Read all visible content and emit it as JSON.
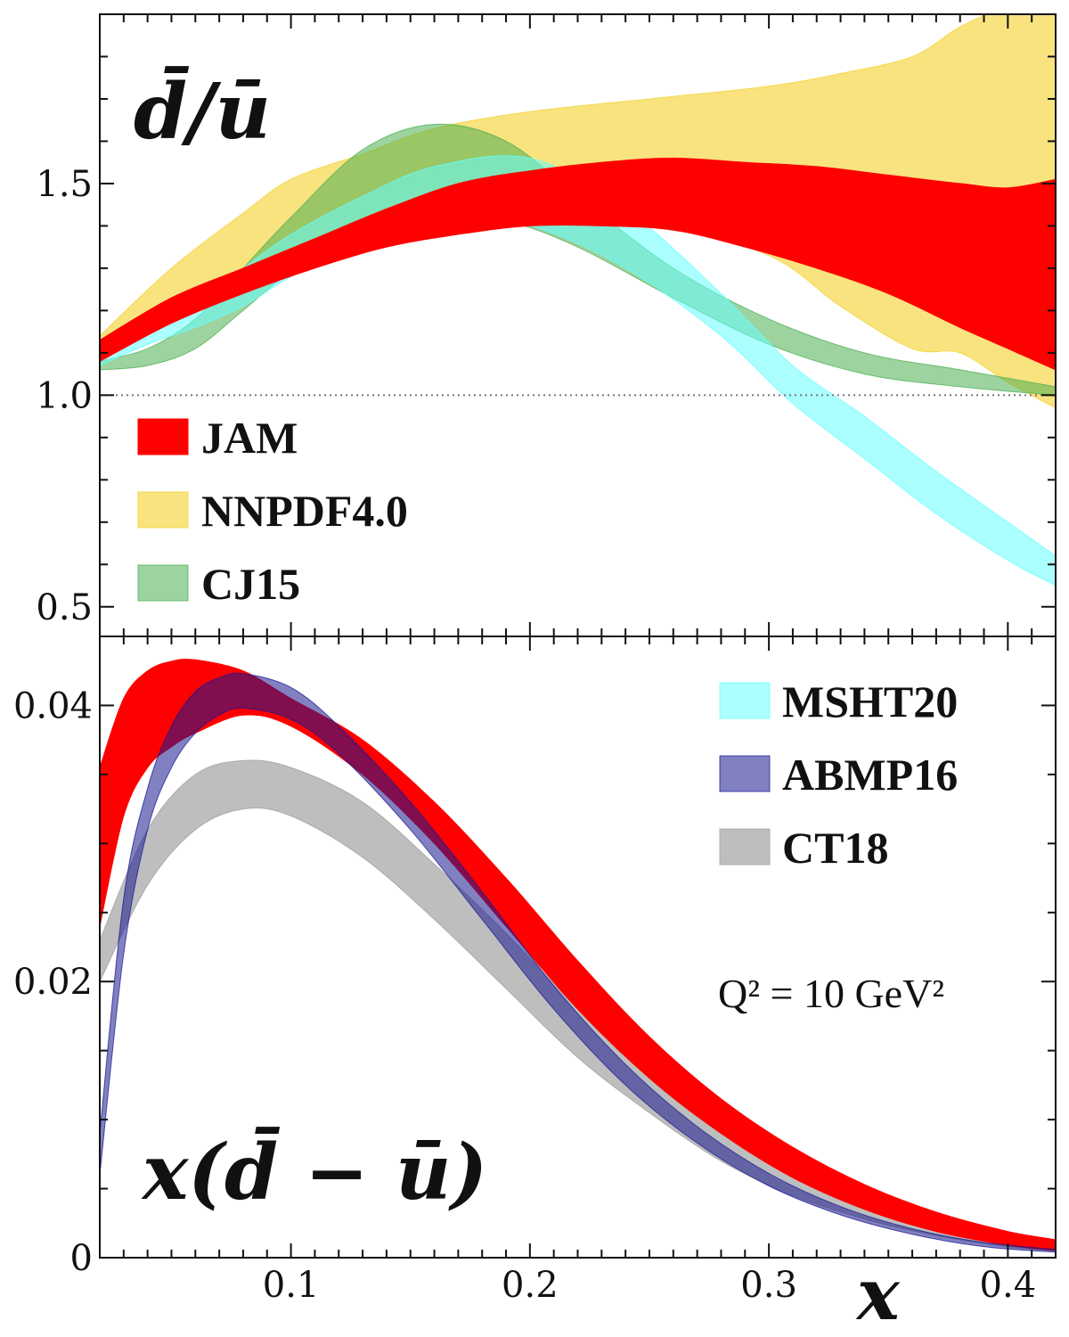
{
  "chart_data": [
    {
      "type": "area",
      "title": "d̄/ū",
      "xlabel": "",
      "ylabel": "",
      "xlim": [
        0.02,
        0.42
      ],
      "ylim": [
        0.43,
        1.9
      ],
      "yticks": [
        0.5,
        1.0,
        1.5
      ],
      "ytick_labels": [
        "0.5",
        "1.0",
        "1.5"
      ],
      "reference_line": 1.0,
      "series": [
        {
          "name": "NNPDF4.0",
          "color": "#f6d43a",
          "opacity": 0.65,
          "x": [
            0.02,
            0.05,
            0.08,
            0.1,
            0.13,
            0.16,
            0.2,
            0.25,
            0.3,
            0.33,
            0.36,
            0.38,
            0.4,
            0.42
          ],
          "lower": [
            1.1,
            1.19,
            1.26,
            1.3,
            1.36,
            1.4,
            1.42,
            1.41,
            1.33,
            1.21,
            1.11,
            1.1,
            1.03,
            0.97
          ],
          "upper": [
            1.14,
            1.3,
            1.43,
            1.51,
            1.57,
            1.63,
            1.67,
            1.7,
            1.73,
            1.76,
            1.8,
            1.87,
            1.92,
            1.95
          ]
        },
        {
          "name": "CJ15",
          "color": "#4caf50",
          "opacity": 0.55,
          "x": [
            0.02,
            0.04,
            0.06,
            0.08,
            0.1,
            0.13,
            0.16,
            0.19,
            0.22,
            0.26,
            0.3,
            0.34,
            0.38,
            0.42
          ],
          "lower": [
            1.06,
            1.07,
            1.11,
            1.2,
            1.29,
            1.37,
            1.41,
            1.41,
            1.35,
            1.23,
            1.12,
            1.05,
            1.02,
            1.0
          ],
          "upper": [
            1.08,
            1.11,
            1.18,
            1.3,
            1.42,
            1.58,
            1.64,
            1.6,
            1.47,
            1.3,
            1.18,
            1.1,
            1.06,
            1.02
          ]
        },
        {
          "name": "MSHT20",
          "color": "#66ffff",
          "opacity": 0.55,
          "x": [
            0.02,
            0.04,
            0.06,
            0.08,
            0.1,
            0.13,
            0.16,
            0.2,
            0.24,
            0.28,
            0.31,
            0.34,
            0.37,
            0.4,
            0.42
          ],
          "lower": [
            1.07,
            1.12,
            1.16,
            1.21,
            1.28,
            1.37,
            1.42,
            1.4,
            1.3,
            1.14,
            0.98,
            0.85,
            0.72,
            0.61,
            0.55
          ],
          "upper": [
            1.1,
            1.16,
            1.22,
            1.3,
            1.38,
            1.47,
            1.54,
            1.56,
            1.44,
            1.24,
            1.07,
            0.95,
            0.82,
            0.7,
            0.62
          ]
        },
        {
          "name": "JAM",
          "color": "#ff0000",
          "opacity": 1.0,
          "x": [
            0.02,
            0.05,
            0.08,
            0.11,
            0.14,
            0.17,
            0.2,
            0.23,
            0.26,
            0.29,
            0.32,
            0.35,
            0.38,
            0.4,
            0.42
          ],
          "lower": [
            1.08,
            1.17,
            1.24,
            1.3,
            1.35,
            1.38,
            1.4,
            1.4,
            1.39,
            1.35,
            1.3,
            1.24,
            1.16,
            1.11,
            1.06
          ],
          "upper": [
            1.13,
            1.23,
            1.3,
            1.37,
            1.44,
            1.5,
            1.53,
            1.55,
            1.56,
            1.55,
            1.54,
            1.52,
            1.5,
            1.49,
            1.51
          ]
        }
      ]
    },
    {
      "type": "area",
      "title": "x(d̄ − ū)",
      "xlabel": "x",
      "ylabel": "",
      "xlim": [
        0.02,
        0.42
      ],
      "ylim": [
        0,
        0.045
      ],
      "xticks": [
        0.1,
        0.2,
        0.3,
        0.4
      ],
      "xtick_labels": [
        "0.1",
        "0.2",
        "0.3",
        "0.4"
      ],
      "yticks": [
        0,
        0.02,
        0.04
      ],
      "ytick_labels": [
        "0",
        "0.02",
        "0.04"
      ],
      "annotation": "Q² = 10 GeV²",
      "series": [
        {
          "name": "CT18",
          "color": "#a8a8a8",
          "opacity": 0.75,
          "x": [
            0.02,
            0.04,
            0.06,
            0.08,
            0.1,
            0.13,
            0.16,
            0.19,
            0.22,
            0.25,
            0.28,
            0.31,
            0.34,
            0.37,
            0.4,
            0.42
          ],
          "lower": [
            0.02,
            0.027,
            0.031,
            0.0325,
            0.032,
            0.029,
            0.0245,
            0.0195,
            0.0145,
            0.0105,
            0.007,
            0.0045,
            0.0028,
            0.0016,
            0.0008,
            0.0005
          ],
          "upper": [
            0.023,
            0.031,
            0.035,
            0.036,
            0.0355,
            0.033,
            0.0285,
            0.0235,
            0.018,
            0.013,
            0.009,
            0.006,
            0.0038,
            0.0023,
            0.0013,
            0.0008
          ]
        },
        {
          "name": "JAM",
          "color": "#ff0000",
          "opacity": 1.0,
          "x": [
            0.02,
            0.03,
            0.04,
            0.05,
            0.06,
            0.08,
            0.1,
            0.13,
            0.16,
            0.19,
            0.22,
            0.25,
            0.28,
            0.31,
            0.34,
            0.37,
            0.4,
            0.42
          ],
          "lower": [
            0.024,
            0.032,
            0.0355,
            0.037,
            0.038,
            0.0393,
            0.0385,
            0.035,
            0.03,
            0.024,
            0.018,
            0.013,
            0.009,
            0.0058,
            0.0035,
            0.0019,
            0.0009,
            0.0005
          ],
          "upper": [
            0.0355,
            0.0405,
            0.0425,
            0.0432,
            0.0433,
            0.0425,
            0.0405,
            0.0375,
            0.033,
            0.0275,
            0.0215,
            0.016,
            0.0115,
            0.008,
            0.0053,
            0.0033,
            0.0019,
            0.0013
          ]
        },
        {
          "name": "ABMP16",
          "color": "#1a1a90",
          "opacity": 0.55,
          "x": [
            0.02,
            0.03,
            0.04,
            0.05,
            0.06,
            0.07,
            0.08,
            0.1,
            0.12,
            0.15,
            0.18,
            0.21,
            0.24,
            0.27,
            0.3,
            0.33,
            0.36,
            0.39,
            0.42
          ],
          "lower": [
            0.006,
            0.022,
            0.031,
            0.0355,
            0.038,
            0.0393,
            0.0398,
            0.039,
            0.0365,
            0.031,
            0.0245,
            0.018,
            0.0125,
            0.0083,
            0.0052,
            0.0031,
            0.0017,
            0.0008,
            0.0004
          ],
          "upper": [
            0.009,
            0.026,
            0.034,
            0.0385,
            0.041,
            0.042,
            0.0423,
            0.0413,
            0.0385,
            0.033,
            0.0265,
            0.0197,
            0.014,
            0.0095,
            0.0061,
            0.0037,
            0.0021,
            0.0011,
            0.0006
          ]
        }
      ]
    }
  ],
  "legend_top": [
    {
      "name": "JAM",
      "color": "#ff0000",
      "opacity": 1.0
    },
    {
      "name": "NNPDF4.0",
      "color": "#f6d43a",
      "opacity": 0.65
    },
    {
      "name": "CJ15",
      "color": "#4caf50",
      "opacity": 0.55
    }
  ],
  "legend_bottom": [
    {
      "name": "MSHT20",
      "color": "#66ffff",
      "opacity": 0.55
    },
    {
      "name": "ABMP16",
      "color": "#1a1a90",
      "opacity": 0.55
    },
    {
      "name": "CT18",
      "color": "#a8a8a8",
      "opacity": 0.75
    }
  ]
}
